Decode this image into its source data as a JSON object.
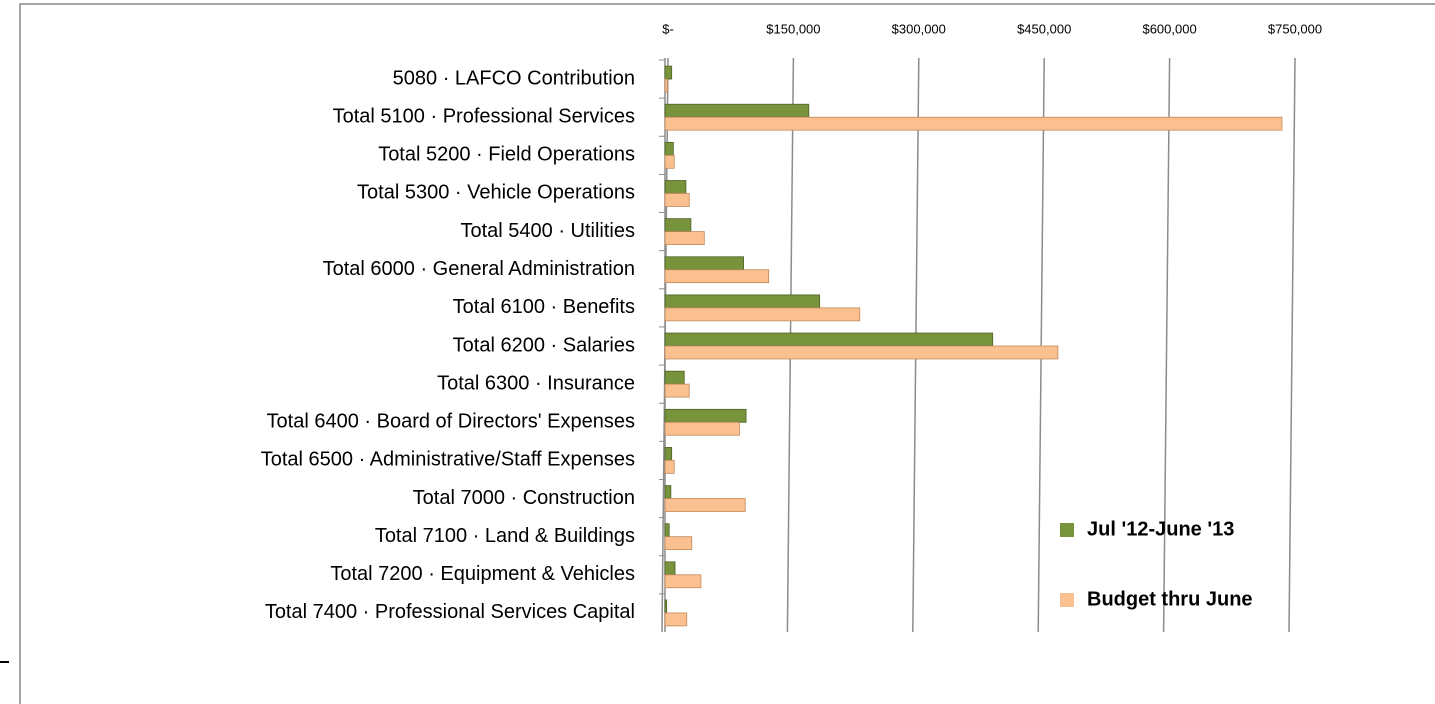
{
  "chart_data": {
    "type": "bar",
    "orientation": "horizontal",
    "categories": [
      "5080 · LAFCO Contribution",
      "Total 5100 · Professional Services",
      "Total 5200 · Field Operations",
      "Total 5300 · Vehicle Operations",
      "Total 5400 · Utilities",
      "Total 6000 · General Administration",
      "Total 6100 · Benefits",
      "Total 6200 · Salaries",
      "Total 6300 · Insurance",
      "Total 6400 · Board of Directors' Expenses",
      "Total 6500 · Administrative/Staff Expenses",
      "Total 7000 · Construction",
      "Total 7100 · Land & Buildings",
      "Total 7200 · Equipment & Vehicles",
      "Total 7400 · Professional Services Capital"
    ],
    "series": [
      {
        "name": "Jul '12-June '13",
        "color": "#77933c",
        "values": [
          8000,
          172000,
          10000,
          25000,
          31000,
          94000,
          185000,
          392000,
          23000,
          97000,
          8000,
          7000,
          5000,
          12000,
          2000
        ]
      },
      {
        "name": "Budget thru June",
        "color": "#fac090",
        "values": [
          3000,
          738000,
          11000,
          29000,
          47000,
          124000,
          233000,
          470000,
          29000,
          89000,
          11000,
          96000,
          32000,
          43000,
          26000
        ]
      }
    ],
    "xlim": [
      0,
      750000
    ],
    "xticks": [
      {
        "value": 0,
        "label": "$-"
      },
      {
        "value": 150000,
        "label": "$150,000"
      },
      {
        "value": 300000,
        "label": "$300,000"
      },
      {
        "value": 450000,
        "label": "$450,000"
      },
      {
        "value": 600000,
        "label": "$600,000"
      },
      {
        "value": 750000,
        "label": "$750,000"
      }
    ],
    "grid": true,
    "legend": "right"
  }
}
